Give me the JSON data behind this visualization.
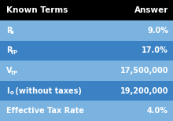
{
  "header": [
    "Known Terms",
    "Answer"
  ],
  "rows": [
    [
      [
        "R",
        "o",
        ""
      ],
      "9.0%"
    ],
    [
      [
        "R",
        "TP",
        ""
      ],
      "17.0%"
    ],
    [
      [
        "V",
        "TP",
        ""
      ],
      "17,500,000"
    ],
    [
      [
        "I",
        "o",
        " (without taxes)"
      ],
      "19,200,000"
    ],
    [
      [
        "Effective Tax Rate",
        "",
        ""
      ],
      "4.0%"
    ]
  ],
  "header_bg": "#000000",
  "header_fg": "#ffffff",
  "row_colors": [
    "#7ab3e0",
    "#3a82c4",
    "#7ab3e0",
    "#3a82c4",
    "#7ab3e0"
  ],
  "row_fg": "#ffffff",
  "figsize": [
    2.2,
    1.54
  ],
  "dpi": 100,
  "header_fontsize": 7.5,
  "row_fontsize": 7.0
}
